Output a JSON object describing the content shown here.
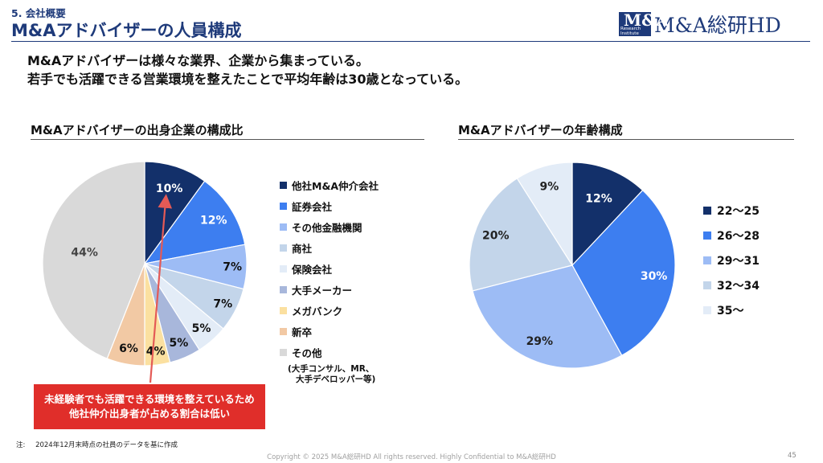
{
  "header": {
    "section": "5. 会社概要",
    "title": "M&Aアドバイザーの人員構成",
    "logo_mark": "M&A",
    "logo_sub1": "Research",
    "logo_sub2": "Institute",
    "logo_text": "M&A総研HD"
  },
  "lead": {
    "line1": "M&Aアドバイザーは様々な業界、企業から集まっている。",
    "line2": "若手でも活躍できる営業環境を整えたことで平均年齢は30歳となっている。"
  },
  "colors": {
    "navy": "#13306a",
    "blue": "#3d7ef0",
    "light_blue": "#9dbcf5",
    "pale_blue": "#c3d5ea",
    "very_pale": "#e3ecf7",
    "grey_blue": "#a8b7db",
    "yellow": "#fbe0a0",
    "peach": "#f2c9a4",
    "grey": "#d9d9d9",
    "red": "#e02e2a"
  },
  "chart_data": [
    {
      "type": "pie",
      "title": "M&Aアドバイザーの出身企業の構成比",
      "categories": [
        "他社M&A仲介会社",
        "証券会社",
        "その他金融機関",
        "商社",
        "保険会社",
        "大手メーカー",
        "メガバンク",
        "新卒",
        "その他"
      ],
      "values": [
        10,
        12,
        7,
        7,
        5,
        5,
        4,
        6,
        44
      ],
      "labels": [
        "10%",
        "12%",
        "7%",
        "7%",
        "5%",
        "5%",
        "4%",
        "6%",
        "44%"
      ],
      "colors": [
        "#13306a",
        "#3d7ef0",
        "#9dbcf5",
        "#c3d5ea",
        "#e3ecf7",
        "#a8b7db",
        "#fbe0a0",
        "#f2c9a4",
        "#d9d9d9"
      ],
      "legend_note_1": "(大手コンサル、MR、",
      "legend_note_2": "大手デベロッパー等)"
    },
    {
      "type": "pie",
      "title": "M&Aアドバイザーの年齢構成",
      "categories": [
        "22～25",
        "26～28",
        "29～31",
        "32～34",
        "35～"
      ],
      "values": [
        12,
        30,
        29,
        20,
        9
      ],
      "labels": [
        "12%",
        "30%",
        "29%",
        "20%",
        "9%"
      ],
      "colors": [
        "#13306a",
        "#3d7ef0",
        "#9dbcf5",
        "#c3d5ea",
        "#e3ecf7"
      ]
    }
  ],
  "callout": {
    "line1": "未経験者でも活躍できる環境を整えているため",
    "line2": "他社仲介出身者が占める割合は低い"
  },
  "note": {
    "label": "注:",
    "text": "2024年12月末時点の社員のデータを基に作成"
  },
  "footer": {
    "copyright": "Copyright © 2025 M&A総研HD All rights reserved. Highly Confidential to M&A総研HD",
    "page": "45"
  }
}
